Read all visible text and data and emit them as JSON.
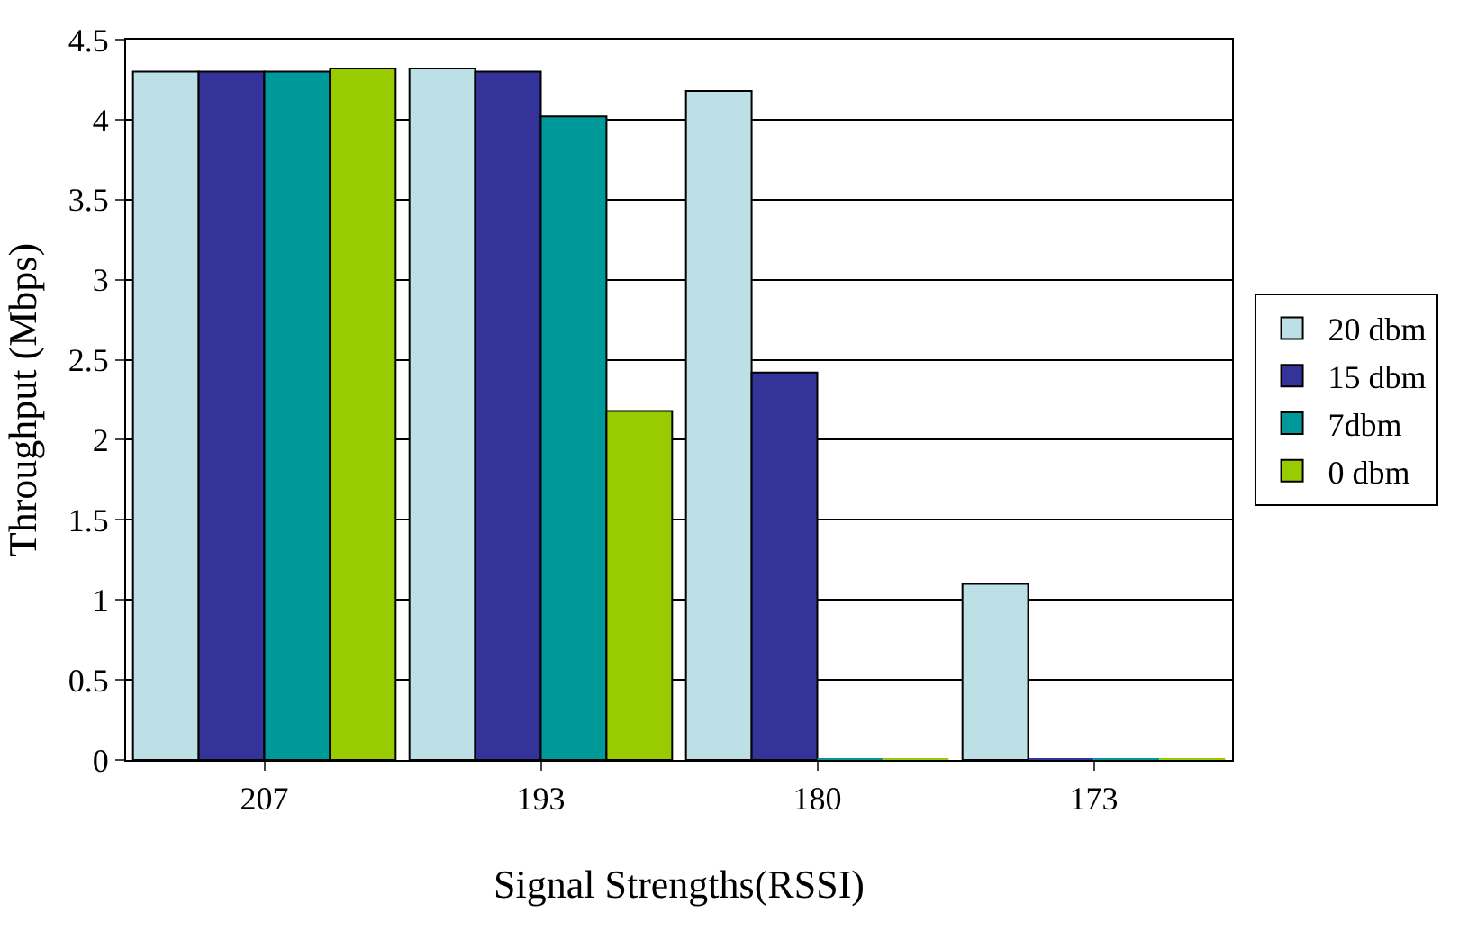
{
  "chart_data": {
    "type": "bar",
    "xlabel": "Signal Strengths(RSSI)",
    "ylabel": "Throughput (Mbps)",
    "categories": [
      "207",
      "193",
      "180",
      "173"
    ],
    "series": [
      {
        "name": "20 dbm",
        "color": "#bde0e6",
        "values": [
          4.3,
          4.32,
          4.18,
          1.1
        ]
      },
      {
        "name": "15 dbm",
        "color": "#333399",
        "values": [
          4.3,
          4.3,
          2.42,
          0
        ]
      },
      {
        "name": "7dbm",
        "color": "#009999",
        "values": [
          4.3,
          4.02,
          0,
          0
        ]
      },
      {
        "name": "0 dbm",
        "color": "#99cc00",
        "values": [
          4.32,
          2.18,
          0,
          0
        ]
      }
    ],
    "ylim": [
      0,
      4.5
    ],
    "yticks": [
      0,
      0.5,
      1,
      1.5,
      2,
      2.5,
      3,
      3.5,
      4,
      4.5
    ],
    "grid": "y",
    "legend": "right"
  }
}
